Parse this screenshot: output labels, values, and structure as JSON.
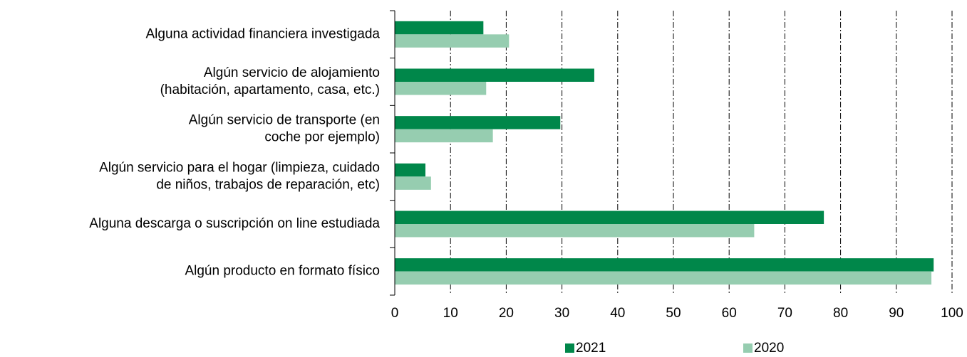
{
  "chart_data": {
    "type": "hbar",
    "categories": [
      [
        "Alguna actividad financiera investigada"
      ],
      [
        "Algún servicio de alojamiento",
        "(habitación, apartamento, casa, etc.)"
      ],
      [
        "Algún servicio de transporte (en",
        "coche por ejemplo)"
      ],
      [
        "Algún servicio para el hogar (limpieza, cuidado",
        "de niños, trabajos de reparación, etc)"
      ],
      [
        "Alguna descarga o suscripción on line estudiada"
      ],
      [
        "Algún producto en formato físico"
      ]
    ],
    "series": [
      {
        "name": "2021",
        "color": "#00874a",
        "values": [
          15.9,
          35.8,
          29.7,
          5.5,
          77.0,
          96.7
        ]
      },
      {
        "name": "2020",
        "color": "#96cdb0",
        "values": [
          20.5,
          16.4,
          17.6,
          6.5,
          64.5,
          96.3
        ]
      }
    ],
    "xlim": [
      0,
      100
    ],
    "xticks": [
      0,
      10,
      20,
      30,
      40,
      50,
      60,
      70,
      80,
      90,
      100
    ],
    "grid": true,
    "legend": "bottom"
  }
}
